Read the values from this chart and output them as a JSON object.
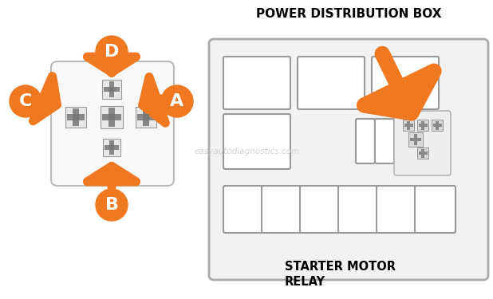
{
  "bg_color": "#ffffff",
  "title_text": "POWER DISTRIBUTION BOX",
  "orange": "#F07820",
  "watermark": "easyautodiagnostics.com",
  "starter_label": "STARTER MOTOR\nRELAY",
  "label_letters": [
    "A",
    "B",
    "C",
    "D"
  ],
  "figsize": [
    6.18,
    3.75
  ],
  "dpi": 100
}
